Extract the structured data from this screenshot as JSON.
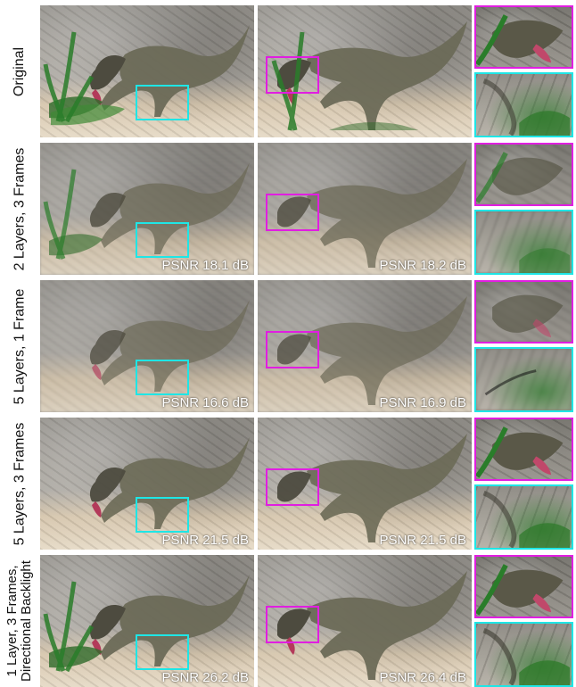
{
  "rows": [
    {
      "label_lines": [
        "Original"
      ],
      "psnr_left": "",
      "psnr_right": ""
    },
    {
      "label_lines": [
        "2 Layers, 3 Frames"
      ],
      "psnr_left": "PSNR 18.1 dB",
      "psnr_right": "PSNR 18.2 dB"
    },
    {
      "label_lines": [
        "5 Layers, 1 Frame"
      ],
      "psnr_left": "PSNR 16.6 dB",
      "psnr_right": "PSNR 16.9 dB"
    },
    {
      "label_lines": [
        "5 Layers, 3 Frames"
      ],
      "psnr_left": "PSNR 21.5 dB",
      "psnr_right": "PSNR 21.5 dB"
    },
    {
      "label_lines": [
        "1 Layer, 3 Frames,",
        "Directional Backlight"
      ],
      "psnr_left": "PSNR 26.2 dB",
      "psnr_right": "PSNR 26.4 dB"
    }
  ],
  "colors": {
    "magenta_box": "#e11ee1",
    "cyan_box": "#1ee6e6"
  }
}
